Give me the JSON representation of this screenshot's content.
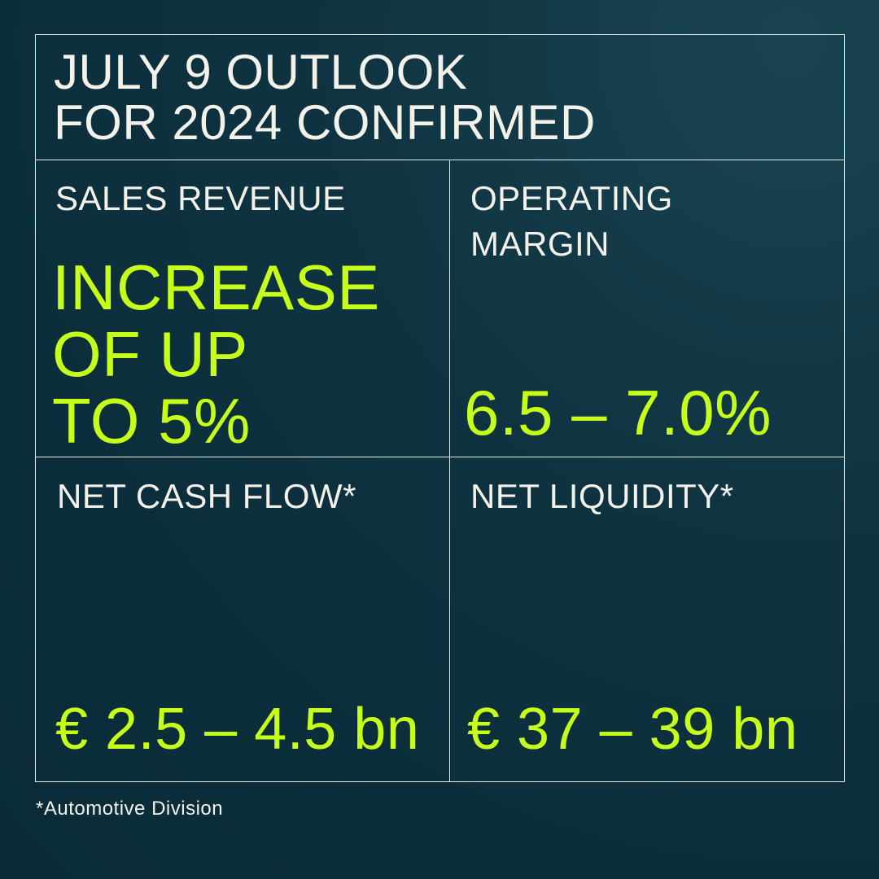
{
  "title": {
    "line1": "JULY 9 OUTLOOK",
    "line2": "FOR 2024 CONFIRMED"
  },
  "cells": [
    {
      "label": "SALES REVENUE",
      "value_lines": [
        "INCREASE",
        "OF UP",
        "TO 5%"
      ]
    },
    {
      "label_lines": [
        "OPERATING",
        "MARGIN"
      ],
      "value": "6.5 – 7.0%"
    },
    {
      "label": "NET CASH FLOW*",
      "value": "€ 2.5 – 4.5 bn"
    },
    {
      "label": "NET LIQUIDITY*",
      "value": "€ 37 – 39 bn"
    }
  ],
  "footnote": "*Automotive Division",
  "colors": {
    "accent": "#c6ff1a",
    "background": "#0f3341",
    "text": "#f2f2ea"
  }
}
